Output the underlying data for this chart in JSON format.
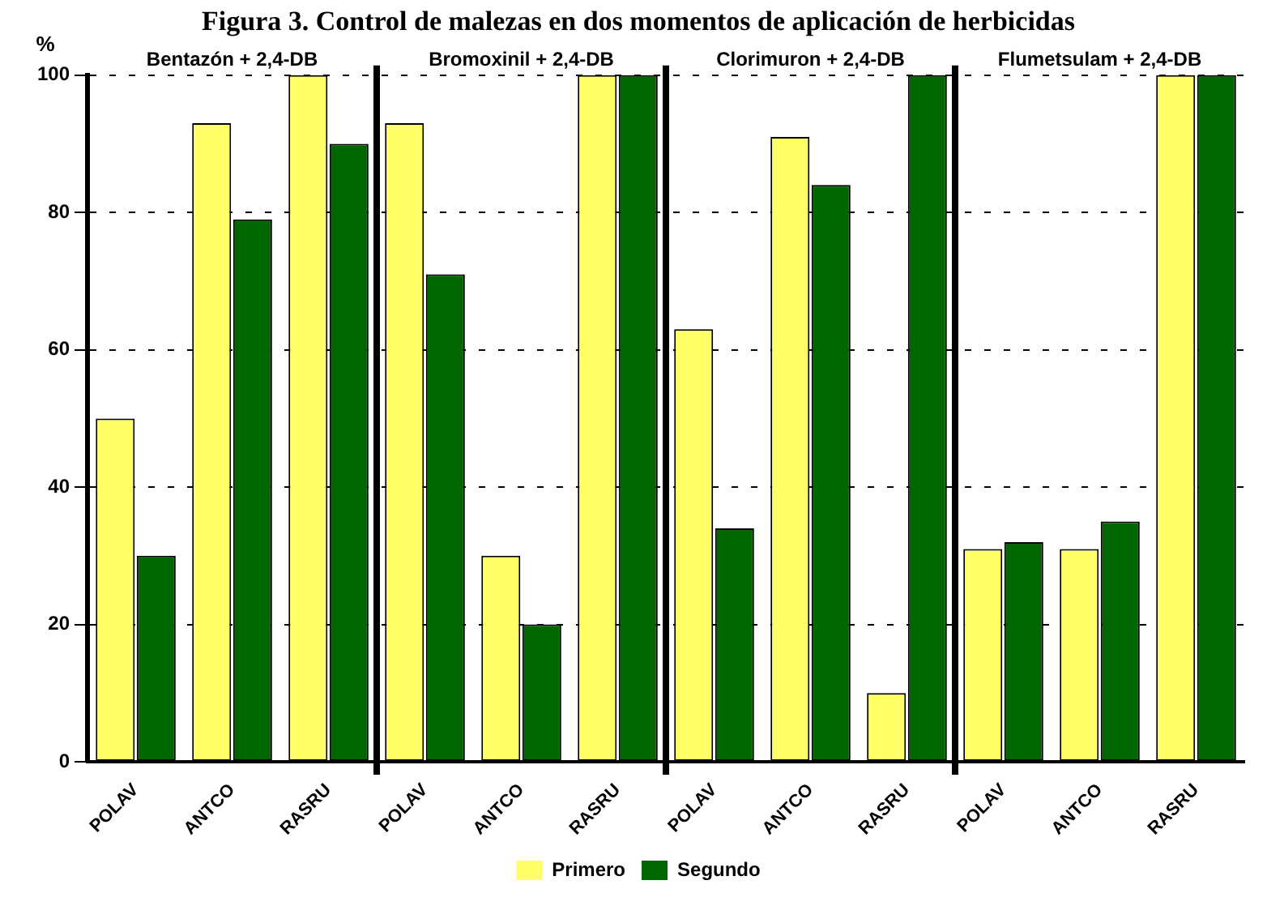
{
  "chart_data": {
    "type": "bar",
    "title": "Figura 3. Control de malezas en dos momentos de aplicación de herbicidas",
    "ylabel": "%",
    "categories": [
      "POLAV",
      "ANTCO",
      "RASRU",
      "POLAV",
      "ANTCO",
      "RASRU",
      "POLAV",
      "ANTCO",
      "RASRU",
      "POLAV",
      "ANTCO",
      "RASRU"
    ],
    "series": [
      {
        "name": "Primero",
        "color": "#ffff66",
        "values": [
          50,
          93,
          100,
          93,
          30,
          100,
          63,
          91,
          10,
          31,
          31,
          100
        ]
      },
      {
        "name": "Segundo",
        "color": "#006600",
        "values": [
          30,
          79,
          90,
          71,
          20,
          100,
          34,
          84,
          100,
          32,
          35,
          100
        ]
      }
    ],
    "annotations": [
      "Bentazón + 2,4-DB",
      "Bromoxinil + 2,4-DB",
      "Clorimuron + 2,4-DB",
      "Flumetsulam + 2,4-DB"
    ],
    "ylim": [
      0,
      100
    ],
    "yticks": [
      0,
      20,
      40,
      60,
      80,
      100
    ],
    "grid": "y",
    "legend": "bottom"
  }
}
